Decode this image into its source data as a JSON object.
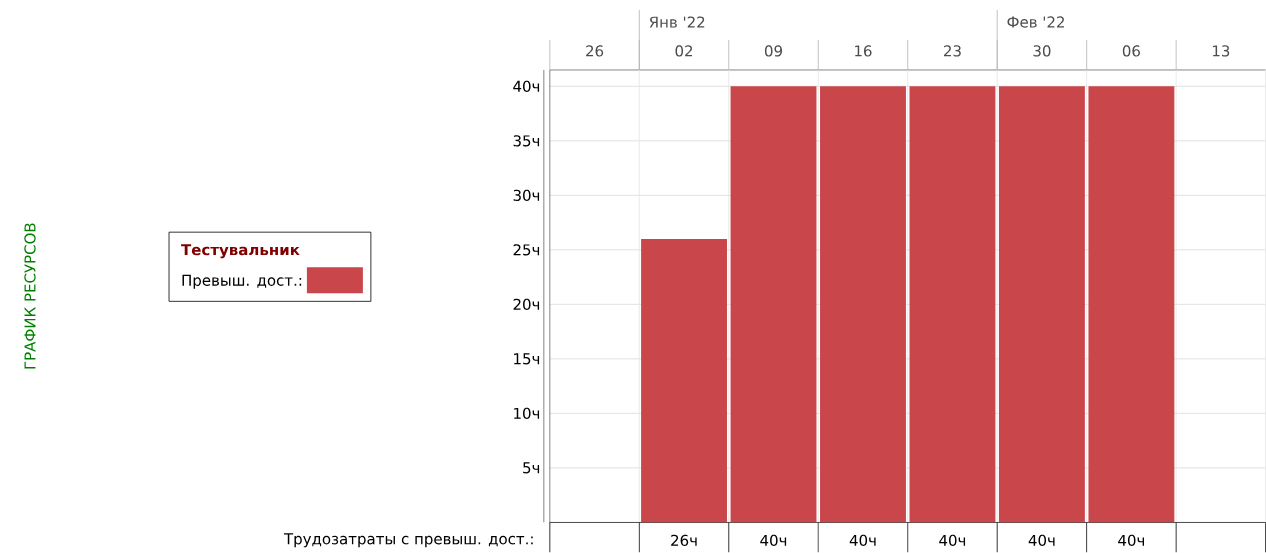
{
  "chart_data": {
    "type": "bar",
    "legend_title": "Тестувальник",
    "categories": [
      "26",
      "02",
      "09",
      "16",
      "23",
      "30",
      "06",
      "13"
    ],
    "series": [
      {
        "name": "Превыш. дост.:",
        "color": "#c9464a",
        "values": [
          null,
          26,
          40,
          40,
          40,
          40,
          40,
          null
        ],
        "value_labels": [
          null,
          "26ч",
          "40ч",
          "40ч",
          "40ч",
          "40ч",
          "40ч",
          null
        ]
      }
    ],
    "ylim": [
      0,
      41.5
    ],
    "yticks": [
      {
        "value": 5,
        "label": "5ч"
      },
      {
        "value": 10,
        "label": "10ч"
      },
      {
        "value": 15,
        "label": "15ч"
      },
      {
        "value": 20,
        "label": "20ч"
      },
      {
        "value": 25,
        "label": "25ч"
      },
      {
        "value": 30,
        "label": "30ч"
      },
      {
        "value": 35,
        "label": "35ч"
      },
      {
        "value": 40,
        "label": "40ч"
      }
    ],
    "annotations": [
      "ГРАФИК РЕСУРСОВ",
      "Янв '22",
      "Фев '22",
      "Трудозатраты с превыш. дост.:"
    ],
    "grid": "y",
    "legend": "left"
  }
}
